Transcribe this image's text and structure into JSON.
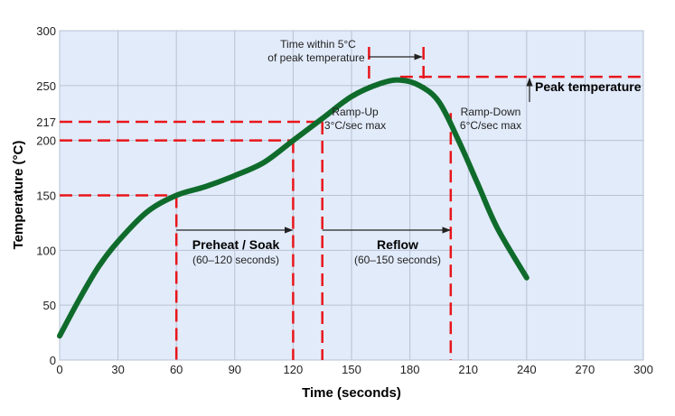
{
  "chart_data": {
    "type": "line",
    "xlabel": "Time (seconds)",
    "ylabel": "Temperature (°C)",
    "xlim": [
      0,
      300
    ],
    "ylim": [
      0,
      300
    ],
    "xticks": [
      0,
      30,
      60,
      90,
      120,
      150,
      180,
      210,
      240,
      270,
      300
    ],
    "yticks": [
      0,
      50,
      100,
      150,
      200,
      217,
      250,
      300
    ],
    "grid": true,
    "colors": {
      "background": "#e2ebfa",
      "grid": "#b8c2d2",
      "curve": "#0f6b2b",
      "guides": "#e8161b"
    },
    "series": [
      {
        "x": [
          0,
          10,
          20,
          30,
          45,
          60,
          75,
          90,
          105,
          120,
          135,
          150,
          165,
          175,
          185,
          195,
          205,
          215,
          225,
          240
        ],
        "y": [
          22,
          55,
          85,
          108,
          135,
          150,
          158,
          168,
          180,
          200,
          220,
          240,
          252,
          255,
          250,
          235,
          200,
          160,
          120,
          75
        ]
      }
    ],
    "reference_lines": {
      "horizontal": [
        150,
        200,
        217,
        258
      ],
      "vertical": [
        60,
        120,
        135,
        159,
        187,
        201
      ]
    },
    "annotations": {
      "time_within_line1": "Time within 5°C",
      "time_within_line2": "of peak temperature",
      "peak": "Peak temperature",
      "rampup_line1": "Ramp-Up",
      "rampup_line2": "3°C/sec max",
      "rampdown_line1": "Ramp-Down",
      "rampdown_line2": "6°C/sec max",
      "preheat_title": "Preheat / Soak",
      "preheat_range": "(60–120 seconds)",
      "reflow_title": "Reflow",
      "reflow_range": "(60–150 seconds)"
    }
  }
}
